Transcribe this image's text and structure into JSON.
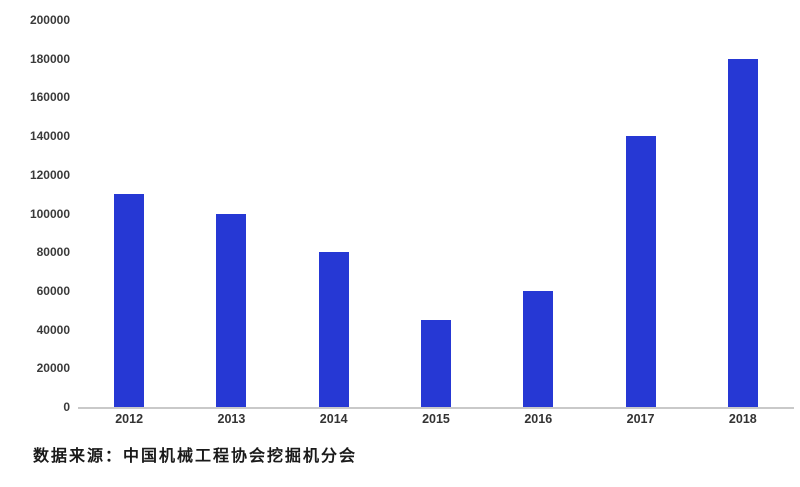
{
  "chart_data": {
    "type": "bar",
    "categories": [
      "2012",
      "2013",
      "2014",
      "2015",
      "2016",
      "2017",
      "2018"
    ],
    "values": [
      110000,
      100000,
      80000,
      45000,
      60000,
      140000,
      180000
    ],
    "title": "",
    "xlabel": "",
    "ylabel": "",
    "ylim": [
      0,
      200000
    ],
    "y_ticks": [
      0,
      20000,
      40000,
      60000,
      80000,
      100000,
      120000,
      140000,
      160000,
      180000,
      200000
    ],
    "grid": false,
    "legend": false,
    "bar_color": "#2638d4",
    "axis_line_color": "#c9c9c9",
    "tick_label_color": "#3a3a3a"
  },
  "source_text": "数据来源：中国机械工程协会挖掘机分会"
}
